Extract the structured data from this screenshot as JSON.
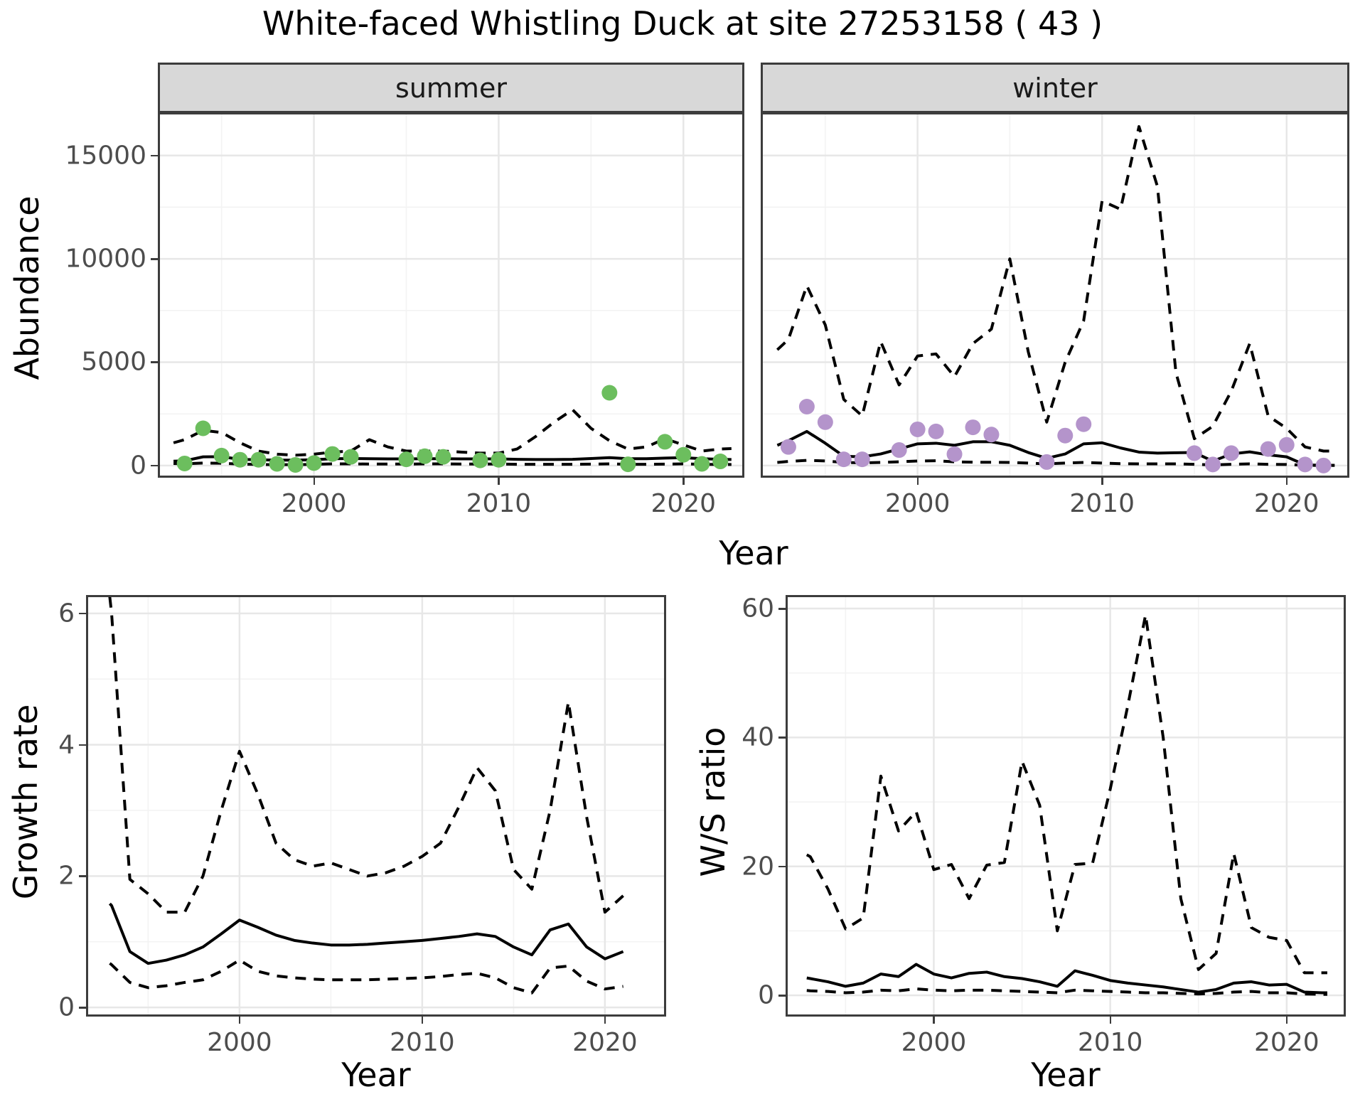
{
  "title": "White-faced Whistling Duck at site 27253158 ( 43 )",
  "colors": {
    "summer_point": "#6CBE5E",
    "winter_point": "#B494CB",
    "line": "#000000",
    "grid_major": "#e7e7e7",
    "grid_minor": "#f3f3f3",
    "strip_fill": "#d8d8d8",
    "panel_border": "#3c3c3c",
    "tick_text": "#4d4d4d",
    "title_text": "#000000"
  },
  "chart_data": [
    {
      "id": "abundance_summer",
      "type": "line",
      "facet_label": "summer",
      "ylabel": "Abundance",
      "xlabel": "Year",
      "xlim": [
        1991.55,
        2023.3
      ],
      "ylim": [
        -590,
        17090
      ],
      "xticks": [
        2000,
        2010,
        2020
      ],
      "xticks_minor": [
        1995,
        2005,
        2015
      ],
      "yticks": [
        0,
        5000,
        10000,
        15000
      ],
      "yticks_minor": [
        2500,
        7500,
        12500
      ],
      "grid": true,
      "legend": "none",
      "point_color": "#6CBE5E",
      "points": {
        "x": [
          1993,
          1994,
          1995,
          1996,
          1997,
          1998,
          1999,
          2000,
          2001,
          2002,
          2005,
          2006,
          2007,
          2009,
          2010,
          2016,
          2017,
          2019,
          2020,
          2021,
          2022
        ],
        "y": [
          100,
          1800,
          480,
          280,
          280,
          80,
          30,
          120,
          560,
          420,
          300,
          450,
          420,
          250,
          280,
          3520,
          60,
          1150,
          520,
          80,
          200
        ]
      },
      "median": {
        "x": [
          1992.4,
          1993,
          1994,
          1995,
          1996,
          1997,
          1998,
          1999,
          2000,
          2001,
          2002,
          2003,
          2004,
          2005,
          2006,
          2007,
          2008,
          2009,
          2010,
          2011,
          2012,
          2013,
          2014,
          2015,
          2016,
          2017,
          2018,
          2019,
          2020,
          2021,
          2022,
          2022.6
        ],
        "y": [
          210,
          230,
          420,
          430,
          300,
          280,
          260,
          260,
          280,
          330,
          340,
          330,
          320,
          320,
          330,
          330,
          320,
          320,
          320,
          300,
          290,
          290,
          300,
          340,
          380,
          330,
          330,
          360,
          380,
          330,
          300,
          290
        ]
      },
      "lower": {
        "x": [
          1992.4,
          1993,
          1994,
          1995,
          1996,
          1997,
          1998,
          1999,
          2000,
          2001,
          2002,
          2003,
          2004,
          2005,
          2006,
          2007,
          2008,
          2009,
          2010,
          2011,
          2012,
          2013,
          2014,
          2015,
          2016,
          2017,
          2018,
          2019,
          2020,
          2021,
          2022,
          2022.6
        ],
        "y": [
          100,
          80,
          120,
          110,
          70,
          50,
          40,
          40,
          60,
          80,
          80,
          70,
          70,
          70,
          80,
          80,
          70,
          70,
          70,
          60,
          60,
          60,
          60,
          70,
          80,
          60,
          60,
          70,
          80,
          60,
          50,
          50
        ]
      },
      "upper": {
        "x": [
          1992.4,
          1993,
          1994,
          1995,
          1996,
          1997,
          1998,
          1999,
          2000,
          2001,
          2002,
          2003,
          2004,
          2005,
          2006,
          2007,
          2008,
          2009,
          2010,
          2011,
          2012,
          2013,
          2014,
          2015,
          2016,
          2017,
          2018,
          2019,
          2020,
          2021,
          2022,
          2022.6
        ],
        "y": [
          1100,
          1250,
          1700,
          1600,
          1100,
          700,
          550,
          500,
          550,
          650,
          700,
          1250,
          900,
          700,
          700,
          700,
          650,
          600,
          600,
          800,
          1400,
          2100,
          2700,
          1800,
          1200,
          800,
          900,
          1300,
          1000,
          700,
          800,
          820
        ]
      }
    },
    {
      "id": "abundance_winter",
      "type": "line",
      "facet_label": "winter",
      "xlim": [
        1991.5,
        2023.4
      ],
      "ylim": [
        -590,
        17090
      ],
      "xticks": [
        2000,
        2010,
        2020
      ],
      "xticks_minor": [
        1995,
        2005,
        2015
      ],
      "yticks": [
        0,
        5000,
        10000,
        15000
      ],
      "yticks_minor": [
        2500,
        7500,
        12500
      ],
      "grid": true,
      "legend": "none",
      "point_color": "#B494CB",
      "points": {
        "x": [
          1993,
          1994,
          1995,
          1996,
          1997,
          1999,
          2000,
          2001,
          2002,
          2003,
          2004,
          2007,
          2008,
          2009,
          2015,
          2016,
          2017,
          2019,
          2020,
          2021,
          2022
        ],
        "y": [
          900,
          2850,
          2100,
          300,
          300,
          750,
          1750,
          1650,
          550,
          1850,
          1500,
          170,
          1450,
          2000,
          600,
          50,
          600,
          800,
          1000,
          50,
          0
        ]
      },
      "median": {
        "x": [
          1992.4,
          1993,
          1994,
          1995,
          1996,
          1997,
          1998,
          1999,
          2000,
          2001,
          2002,
          2003,
          2004,
          2005,
          2006,
          2007,
          2008,
          2009,
          2010,
          2011,
          2012,
          2013,
          2014,
          2015,
          2016,
          2017,
          2018,
          2019,
          2020,
          2021,
          2022,
          2022.6
        ],
        "y": [
          980,
          1200,
          1650,
          1080,
          450,
          420,
          560,
          800,
          1050,
          1080,
          980,
          1150,
          1150,
          980,
          630,
          350,
          560,
          1050,
          1100,
          850,
          650,
          600,
          620,
          630,
          210,
          560,
          660,
          520,
          420,
          30,
          10,
          10
        ]
      },
      "lower": {
        "x": [
          1992.4,
          1993,
          1994,
          1995,
          1996,
          1997,
          1998,
          1999,
          2000,
          2001,
          2002,
          2003,
          2004,
          2005,
          2006,
          2007,
          2008,
          2009,
          2010,
          2011,
          2012,
          2013,
          2014,
          2015,
          2016,
          2017,
          2018,
          2019,
          2020,
          2021,
          2022,
          2022.6
        ],
        "y": [
          150,
          200,
          250,
          220,
          150,
          130,
          150,
          180,
          220,
          230,
          180,
          160,
          160,
          150,
          120,
          80,
          120,
          150,
          120,
          90,
          80,
          80,
          80,
          60,
          30,
          60,
          80,
          60,
          50,
          10,
          5,
          5
        ]
      },
      "upper": {
        "x": [
          1992.4,
          1993,
          1994,
          1995,
          1996,
          1997,
          1998,
          1999,
          2000,
          2001,
          2002,
          2003,
          2004,
          2005,
          2006,
          2007,
          2008,
          2009,
          2010,
          2011,
          2012,
          2013,
          2014,
          2015,
          2016,
          2017,
          2018,
          2019,
          2020,
          2021,
          2022,
          2022.6
        ],
        "y": [
          5600,
          6100,
          8700,
          6800,
          3200,
          2400,
          6000,
          3900,
          5300,
          5400,
          4300,
          5900,
          6600,
          10000,
          5500,
          2100,
          5000,
          7000,
          12800,
          12400,
          16400,
          13500,
          4500,
          1300,
          1900,
          3600,
          5900,
          2400,
          1800,
          900,
          700,
          700
        ]
      }
    },
    {
      "id": "growth_rate",
      "type": "line",
      "ylabel": "Growth rate",
      "xlabel": "Year",
      "xlim": [
        1991.6,
        2023.35
      ],
      "ylim": [
        -0.14,
        6.28
      ],
      "xticks": [
        2000,
        2010,
        2020
      ],
      "xticks_minor": [
        1995,
        2005,
        2015
      ],
      "yticks": [
        0,
        2,
        4,
        6
      ],
      "yticks_minor": [
        1,
        3,
        5
      ],
      "grid": true,
      "legend": "none",
      "median": {
        "x": [
          1992.9,
          1993,
          1994,
          1995,
          1996,
          1997,
          1998,
          1999,
          2000,
          2001,
          2002,
          2003,
          2004,
          2005,
          2006,
          2007,
          2008,
          2009,
          2010,
          2011,
          2012,
          2013,
          2014,
          2015,
          2016,
          2017,
          2018,
          2019,
          2020,
          2021
        ],
        "y": [
          1.58,
          1.55,
          0.85,
          0.67,
          0.72,
          0.8,
          0.92,
          1.12,
          1.33,
          1.22,
          1.1,
          1.02,
          0.98,
          0.95,
          0.95,
          0.96,
          0.98,
          1.0,
          1.02,
          1.05,
          1.08,
          1.12,
          1.08,
          0.92,
          0.8,
          1.18,
          1.27,
          0.92,
          0.74,
          0.85
        ]
      },
      "lower": {
        "x": [
          1992.9,
          1993,
          1994,
          1995,
          1996,
          1997,
          1998,
          1999,
          2000,
          2001,
          2002,
          2003,
          2004,
          2005,
          2006,
          2007,
          2008,
          2009,
          2010,
          2011,
          2012,
          2013,
          2014,
          2015,
          2016,
          2017,
          2018,
          2019,
          2020,
          2021
        ],
        "y": [
          0.67,
          0.65,
          0.38,
          0.3,
          0.33,
          0.38,
          0.42,
          0.55,
          0.72,
          0.55,
          0.48,
          0.45,
          0.43,
          0.42,
          0.42,
          0.42,
          0.43,
          0.44,
          0.45,
          0.47,
          0.5,
          0.52,
          0.45,
          0.3,
          0.22,
          0.6,
          0.63,
          0.4,
          0.28,
          0.32
        ]
      },
      "upper": {
        "x": [
          1992.9,
          1993,
          1994,
          1995,
          1996,
          1997,
          1998,
          1999,
          2000,
          2001,
          2002,
          2003,
          2004,
          2005,
          2006,
          2007,
          2008,
          2009,
          2010,
          2011,
          2012,
          2013,
          2014,
          2015,
          2016,
          2017,
          2018,
          2019,
          2020,
          2021
        ],
        "y": [
          6.25,
          6.0,
          1.95,
          1.73,
          1.45,
          1.45,
          2.0,
          3.0,
          3.9,
          3.25,
          2.5,
          2.25,
          2.15,
          2.2,
          2.1,
          2.0,
          2.05,
          2.15,
          2.3,
          2.5,
          3.05,
          3.65,
          3.3,
          2.1,
          1.8,
          3.0,
          4.65,
          2.9,
          1.45,
          1.7
        ]
      }
    },
    {
      "id": "ws_ratio",
      "type": "line",
      "ylabel": "W/S ratio",
      "xlabel": "Year",
      "xlim": [
        1991.6,
        2023.35
      ],
      "ylim": [
        -3.3,
        62.1
      ],
      "xticks": [
        2000,
        2010,
        2020
      ],
      "xticks_minor": [
        1995,
        2005,
        2015
      ],
      "yticks": [
        0,
        20,
        40,
        60
      ],
      "yticks_minor": [
        10,
        30,
        50
      ],
      "grid": true,
      "legend": "none",
      "median": {
        "x": [
          1992.8,
          1993,
          1994,
          1995,
          1996,
          1997,
          1998,
          1999,
          2000,
          2001,
          2002,
          2003,
          2004,
          2005,
          2006,
          2007,
          2008,
          2009,
          2010,
          2011,
          2012,
          2013,
          2014,
          2015,
          2016,
          2017,
          2018,
          2019,
          2020,
          2021,
          2022,
          2022.3
        ],
        "y": [
          2.7,
          2.6,
          2.1,
          1.4,
          1.9,
          3.3,
          2.9,
          4.8,
          3.3,
          2.7,
          3.4,
          3.6,
          2.9,
          2.6,
          2.1,
          1.4,
          3.8,
          3.1,
          2.3,
          1.9,
          1.6,
          1.3,
          0.9,
          0.5,
          0.9,
          1.9,
          2.1,
          1.6,
          1.7,
          0.5,
          0.4,
          0.4
        ]
      },
      "lower": {
        "x": [
          1992.8,
          1993,
          1994,
          1995,
          1996,
          1997,
          1998,
          1999,
          2000,
          2001,
          2002,
          2003,
          2004,
          2005,
          2006,
          2007,
          2008,
          2009,
          2010,
          2011,
          2012,
          2013,
          2014,
          2015,
          2016,
          2017,
          2018,
          2019,
          2020,
          2021,
          2022,
          2022.3
        ],
        "y": [
          0.75,
          0.7,
          0.6,
          0.4,
          0.5,
          0.8,
          0.7,
          1.0,
          0.8,
          0.7,
          0.8,
          0.8,
          0.7,
          0.6,
          0.5,
          0.4,
          0.8,
          0.7,
          0.6,
          0.5,
          0.4,
          0.4,
          0.3,
          0.2,
          0.3,
          0.5,
          0.6,
          0.4,
          0.4,
          0.2,
          0.15,
          0.15
        ]
      },
      "upper": {
        "x": [
          1992.8,
          1993,
          1994,
          1995,
          1996,
          1997,
          1998,
          1999,
          2000,
          2001,
          2002,
          2003,
          2004,
          2005,
          2006,
          2007,
          2008,
          2009,
          2010,
          2011,
          2012,
          2013,
          2014,
          2015,
          2016,
          2017,
          2018,
          2019,
          2020,
          2021,
          2022,
          2022.3
        ],
        "y": [
          21.8,
          21.5,
          16.5,
          10.3,
          12.0,
          34.0,
          25.5,
          28.5,
          19.5,
          20.3,
          15.0,
          20.2,
          20.6,
          36.3,
          29.5,
          10.0,
          20.3,
          20.5,
          32.0,
          45.0,
          59.0,
          40.0,
          15.0,
          4.0,
          6.5,
          22.0,
          10.5,
          9.0,
          8.5,
          3.5,
          3.5,
          3.5
        ]
      }
    }
  ]
}
